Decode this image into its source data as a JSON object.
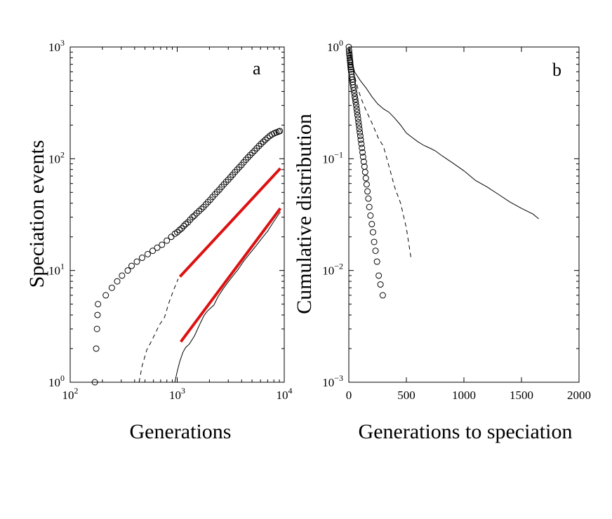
{
  "chart_data": [
    {
      "panel": "a",
      "type": "scatter",
      "xscale": "log",
      "yscale": "log",
      "xlim": [
        100,
        10000
      ],
      "ylim": [
        1,
        1000
      ],
      "xlabel": "Generations",
      "ylabel": "Speciation events",
      "xticks": [
        {
          "base": "10",
          "exp": "2",
          "value": 100
        },
        {
          "base": "10",
          "exp": "3",
          "value": 1000
        },
        {
          "base": "10",
          "exp": "4",
          "value": 10000
        }
      ],
      "yticks": [
        {
          "base": "10",
          "exp": "0",
          "value": 1
        },
        {
          "base": "10",
          "exp": "1",
          "value": 10
        },
        {
          "base": "10",
          "exp": "2",
          "value": 100
        },
        {
          "base": "10",
          "exp": "3",
          "value": 1000
        }
      ],
      "series": [
        {
          "name": "open-circles",
          "style": "circle",
          "points": [
            [
              170,
              1.0
            ],
            [
              175,
              2.0
            ],
            [
              178,
              3.0
            ],
            [
              180,
              4.0
            ],
            [
              182,
              5.0
            ],
            [
              215,
              6
            ],
            [
              245,
              7
            ],
            [
              275,
              8
            ],
            [
              305,
              9
            ],
            [
              345,
              10
            ],
            [
              375,
              11
            ],
            [
              420,
              12
            ],
            [
              470,
              13
            ],
            [
              530,
              14
            ],
            [
              590,
              15
            ],
            [
              650,
              16
            ],
            [
              720,
              17
            ],
            [
              800,
              18.5
            ],
            [
              880,
              20
            ],
            [
              950,
              21.3
            ],
            [
              1000,
              22
            ],
            [
              1050,
              23
            ],
            [
              1100,
              23.8
            ],
            [
              1150,
              25
            ],
            [
              1200,
              26
            ],
            [
              1260,
              27
            ],
            [
              1320,
              28.5
            ],
            [
              1390,
              30
            ],
            [
              1450,
              31
            ],
            [
              1520,
              32.5
            ],
            [
              1600,
              34
            ],
            [
              1680,
              35.5
            ],
            [
              1760,
              37
            ],
            [
              1850,
              39
            ],
            [
              1940,
              41
            ],
            [
              2040,
              43
            ],
            [
              2140,
              45.5
            ],
            [
              2250,
              48
            ],
            [
              2360,
              50.5
            ],
            [
              2480,
              53
            ],
            [
              2600,
              56
            ],
            [
              2730,
              59
            ],
            [
              2860,
              62
            ],
            [
              3000,
              65
            ],
            [
              3150,
              68.5
            ],
            [
              3300,
              72
            ],
            [
              3460,
              76
            ],
            [
              3630,
              80
            ],
            [
              3800,
              84
            ],
            [
              3990,
              88
            ],
            [
              4180,
              93
            ],
            [
              4380,
              98
            ],
            [
              4590,
              103
            ],
            [
              4810,
              108
            ],
            [
              5040,
              113
            ],
            [
              5280,
              118
            ],
            [
              5530,
              124
            ],
            [
              5800,
              130
            ],
            [
              6080,
              136
            ],
            [
              6370,
              142
            ],
            [
              6670,
              148
            ],
            [
              6990,
              154
            ],
            [
              7330,
              160
            ],
            [
              7680,
              165
            ],
            [
              8050,
              169
            ],
            [
              8440,
              172
            ],
            [
              8850,
              175
            ],
            [
              9100,
              177
            ]
          ]
        },
        {
          "name": "red-fit-1",
          "style": "line",
          "color": "#dd1111",
          "points": [
            [
              1060,
              8.8
            ],
            [
              9200,
              82
            ]
          ]
        },
        {
          "name": "red-fit-2",
          "style": "line",
          "color": "#dd1111",
          "points": [
            [
              1080,
              2.3
            ],
            [
              9200,
              36
            ]
          ]
        },
        {
          "name": "dashed-curve",
          "style": "dashed",
          "points": [
            [
              440,
              1.0
            ],
            [
              470,
              1.4
            ],
            [
              520,
              1.95
            ],
            [
              570,
              2.3
            ],
            [
              620,
              2.7
            ],
            [
              680,
              3.25
            ],
            [
              760,
              3.8
            ],
            [
              840,
              5.2
            ],
            [
              920,
              6.6
            ],
            [
              1020,
              8.4
            ]
          ]
        },
        {
          "name": "solid-curve",
          "style": "solid",
          "points": [
            [
              950,
              1.0
            ],
            [
              1000,
              1.25
            ],
            [
              1060,
              1.55
            ],
            [
              1130,
              1.85
            ],
            [
              1200,
              2.05
            ],
            [
              1300,
              2.2
            ],
            [
              1450,
              2.6
            ],
            [
              1600,
              3.2
            ],
            [
              1780,
              3.95
            ],
            [
              1900,
              4.3
            ],
            [
              2000,
              4.5
            ],
            [
              2200,
              4.9
            ],
            [
              2400,
              5.8
            ],
            [
              2700,
              6.9
            ],
            [
              3000,
              7.9
            ],
            [
              3300,
              8.9
            ],
            [
              3700,
              10.2
            ],
            [
              4200,
              12.2
            ],
            [
              4800,
              14.3
            ],
            [
              5500,
              16.8
            ],
            [
              6200,
              19.5
            ],
            [
              7000,
              22.5
            ],
            [
              7800,
              26.5
            ],
            [
              8600,
              30.5
            ],
            [
              9200,
              33.5
            ]
          ]
        }
      ]
    },
    {
      "panel": "b",
      "type": "scatter",
      "xscale": "linear",
      "yscale": "log",
      "xlim": [
        0,
        2000
      ],
      "ylim": [
        0.001,
        1
      ],
      "xlabel": "Generations to speciation",
      "ylabel": "Cumulative distribution",
      "xticks": [
        {
          "label": "0",
          "value": 0
        },
        {
          "label": "500",
          "value": 500
        },
        {
          "label": "1000",
          "value": 1000
        },
        {
          "label": "1500",
          "value": 1500
        },
        {
          "label": "2000",
          "value": 2000
        }
      ],
      "yticks": [
        {
          "base": "10",
          "exp": "−3",
          "value": 0.001
        },
        {
          "base": "10",
          "exp": "−2",
          "value": 0.01
        },
        {
          "base": "10",
          "exp": "−1",
          "value": 0.1
        },
        {
          "base": "10",
          "exp": "0",
          "value": 1
        }
      ],
      "series": [
        {
          "name": "open-circles",
          "style": "circle",
          "points": [
            [
              0,
              1.0
            ],
            [
              2,
              0.93
            ],
            [
              4,
              0.88
            ],
            [
              6,
              0.84
            ],
            [
              8,
              0.8
            ],
            [
              10,
              0.76
            ],
            [
              12,
              0.73
            ],
            [
              14,
              0.69
            ],
            [
              16,
              0.66
            ],
            [
              18,
              0.63
            ],
            [
              21,
              0.6
            ],
            [
              24,
              0.57
            ],
            [
              27,
              0.54
            ],
            [
              30,
              0.51
            ],
            [
              33,
              0.485
            ],
            [
              36,
              0.46
            ],
            [
              40,
              0.435
            ],
            [
              44,
              0.41
            ],
            [
              48,
              0.385
            ],
            [
              52,
              0.36
            ],
            [
              56,
              0.34
            ],
            [
              60,
              0.32
            ],
            [
              64,
              0.3
            ],
            [
              68,
              0.28
            ],
            [
              72,
              0.262
            ],
            [
              76,
              0.245
            ],
            [
              80,
              0.228
            ],
            [
              84,
              0.212
            ],
            [
              88,
              0.198
            ],
            [
              92,
              0.185
            ],
            [
              96,
              0.172
            ],
            [
              100,
              0.16
            ],
            [
              104,
              0.148
            ],
            [
              109,
              0.136
            ],
            [
              114,
              0.125
            ],
            [
              119,
              0.114
            ],
            [
              124,
              0.104
            ],
            [
              130,
              0.094
            ],
            [
              136,
              0.085
            ],
            [
              142,
              0.076
            ],
            [
              148,
              0.067
            ],
            [
              155,
              0.059
            ],
            [
              162,
              0.051
            ],
            [
              170,
              0.044
            ],
            [
              178,
              0.037
            ],
            [
              188,
              0.031
            ],
            [
              200,
              0.026
            ],
            [
              210,
              0.022
            ],
            [
              220,
              0.018
            ],
            [
              232,
              0.015
            ],
            [
              245,
              0.012
            ],
            [
              260,
              0.009
            ],
            [
              275,
              0.0075
            ],
            [
              295,
              0.006
            ]
          ]
        },
        {
          "name": "dashed-curve",
          "style": "dashed",
          "points": [
            [
              0,
              1.0
            ],
            [
              20,
              0.75
            ],
            [
              50,
              0.55
            ],
            [
              80,
              0.42
            ],
            [
              110,
              0.34
            ],
            [
              150,
              0.27
            ],
            [
              200,
              0.21
            ],
            [
              260,
              0.15
            ],
            [
              300,
              0.13
            ],
            [
              350,
              0.085
            ],
            [
              400,
              0.055
            ],
            [
              450,
              0.04
            ],
            [
              500,
              0.024
            ],
            [
              540,
              0.013
            ]
          ]
        },
        {
          "name": "solid-curve",
          "style": "solid",
          "points": [
            [
              0,
              1.0
            ],
            [
              50,
              0.6
            ],
            [
              100,
              0.5
            ],
            [
              150,
              0.43
            ],
            [
              200,
              0.36
            ],
            [
              250,
              0.31
            ],
            [
              300,
              0.28
            ],
            [
              350,
              0.26
            ],
            [
              400,
              0.23
            ],
            [
              450,
              0.2
            ],
            [
              500,
              0.17
            ],
            [
              550,
              0.155
            ],
            [
              600,
              0.142
            ],
            [
              650,
              0.132
            ],
            [
              700,
              0.125
            ],
            [
              750,
              0.118
            ],
            [
              800,
              0.108
            ],
            [
              900,
              0.092
            ],
            [
              1000,
              0.078
            ],
            [
              1100,
              0.064
            ],
            [
              1200,
              0.056
            ],
            [
              1300,
              0.048
            ],
            [
              1400,
              0.041
            ],
            [
              1500,
              0.036
            ],
            [
              1600,
              0.032
            ],
            [
              1650,
              0.029
            ]
          ]
        }
      ]
    }
  ]
}
